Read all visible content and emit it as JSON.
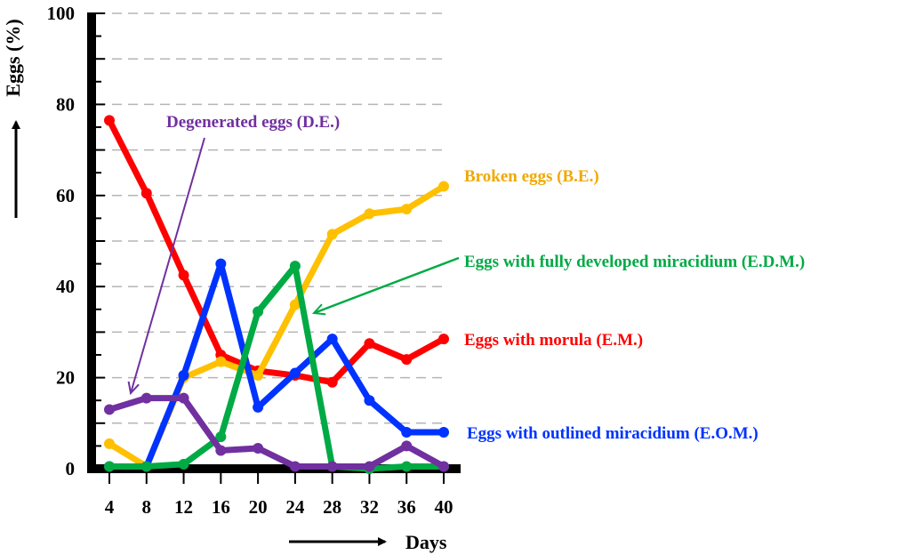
{
  "chart_data": {
    "type": "line",
    "title": "",
    "xlabel": "Days",
    "ylabel": "Eggs (%)",
    "ylim": [
      0,
      100
    ],
    "y_ticks": [
      0,
      20,
      40,
      60,
      80,
      100
    ],
    "x_ticks": [
      4,
      8,
      12,
      16,
      20,
      24,
      28,
      32,
      36,
      40
    ],
    "grid": "dashed horizontal every 10",
    "x": [
      4,
      8,
      12,
      16,
      20,
      24,
      28,
      32,
      36,
      40
    ],
    "series": [
      {
        "key": "em",
        "name": "Eggs with morula (E.M.)",
        "color": "#ff0000",
        "values": [
          76.5,
          60.5,
          42.5,
          25,
          21.5,
          20.5,
          19,
          27.5,
          24,
          28.5
        ]
      },
      {
        "key": "be",
        "name": "Broken eggs (B.E.)",
        "color": "#ffc000",
        "values": [
          5.5,
          0.5,
          20,
          23.5,
          20.5,
          36,
          51.5,
          56,
          57,
          62
        ]
      },
      {
        "key": "eom",
        "name": "Eggs with outlined miracidium (E.O.M.)",
        "color": "#0033ff",
        "values": [
          0.5,
          0.5,
          20.5,
          45,
          13.5,
          21,
          28.5,
          15,
          8,
          8
        ]
      },
      {
        "key": "edm",
        "name": "Eggs with fully developed miracidium (E.D.M.)",
        "color": "#00aa44",
        "values": [
          0.5,
          0.5,
          1,
          7,
          34.5,
          44.5,
          0.5,
          0,
          0.5,
          0.5
        ]
      },
      {
        "key": "de",
        "name": "Degenerated eggs (D.E.)",
        "color": "#7030a0",
        "values": [
          13,
          15.5,
          15.5,
          4,
          4.5,
          0.5,
          0.5,
          0.5,
          5,
          0.5
        ]
      }
    ]
  }
}
